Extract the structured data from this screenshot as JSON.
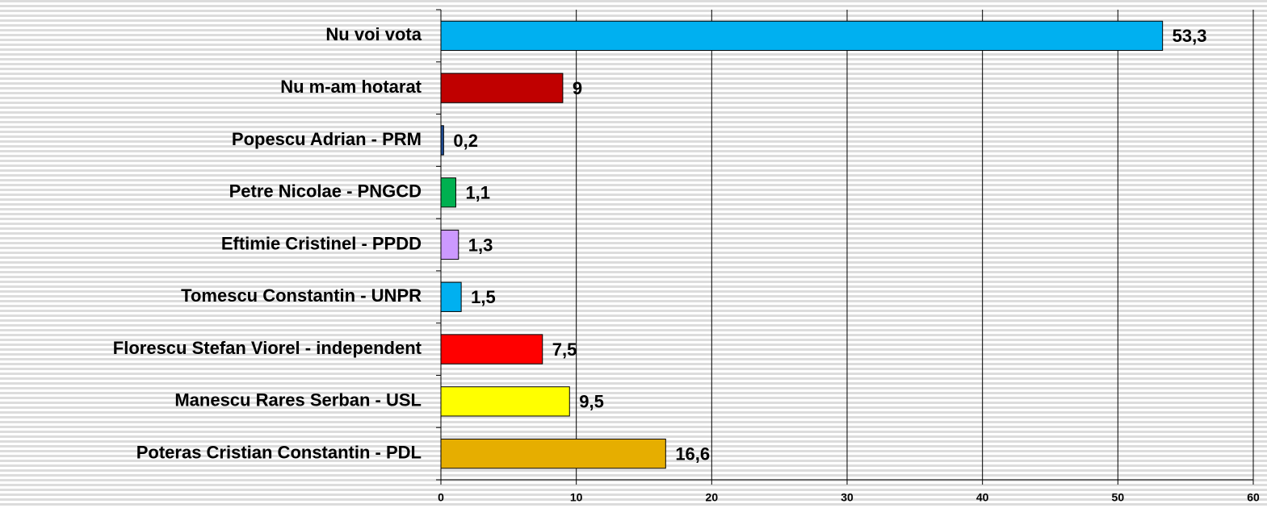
{
  "chart_data": {
    "type": "barh",
    "categories": [
      "Nu voi vota",
      "Nu m-am hotarat",
      "Popescu Adrian - PRM",
      "Petre Nicolae - PNGCD",
      "Eftimie Cristinel - PPDD",
      "Tomescu Constantin - UNPR",
      "Florescu Stefan Viorel - independent",
      "Manescu Rares Serban - USL",
      "Poteras Cristian Constantin - PDL"
    ],
    "values": [
      53.3,
      9,
      0.2,
      1.1,
      1.3,
      1.5,
      7.5,
      9.5,
      16.6
    ],
    "value_labels": [
      "53,3",
      "9",
      "0,2",
      "1,1",
      "1,3",
      "1,5",
      "7,5",
      "9,5",
      "16,6"
    ],
    "colors": [
      "#00b0f0",
      "#c00000",
      "#1f4e9a",
      "#00b050",
      "#cc99ff",
      "#00b0f0",
      "#ff0000",
      "#ffff00",
      "#e6ae00"
    ],
    "xlim": [
      0,
      60
    ],
    "xticks": [
      0,
      10,
      20,
      30,
      40,
      50,
      60
    ],
    "grid": true
  }
}
